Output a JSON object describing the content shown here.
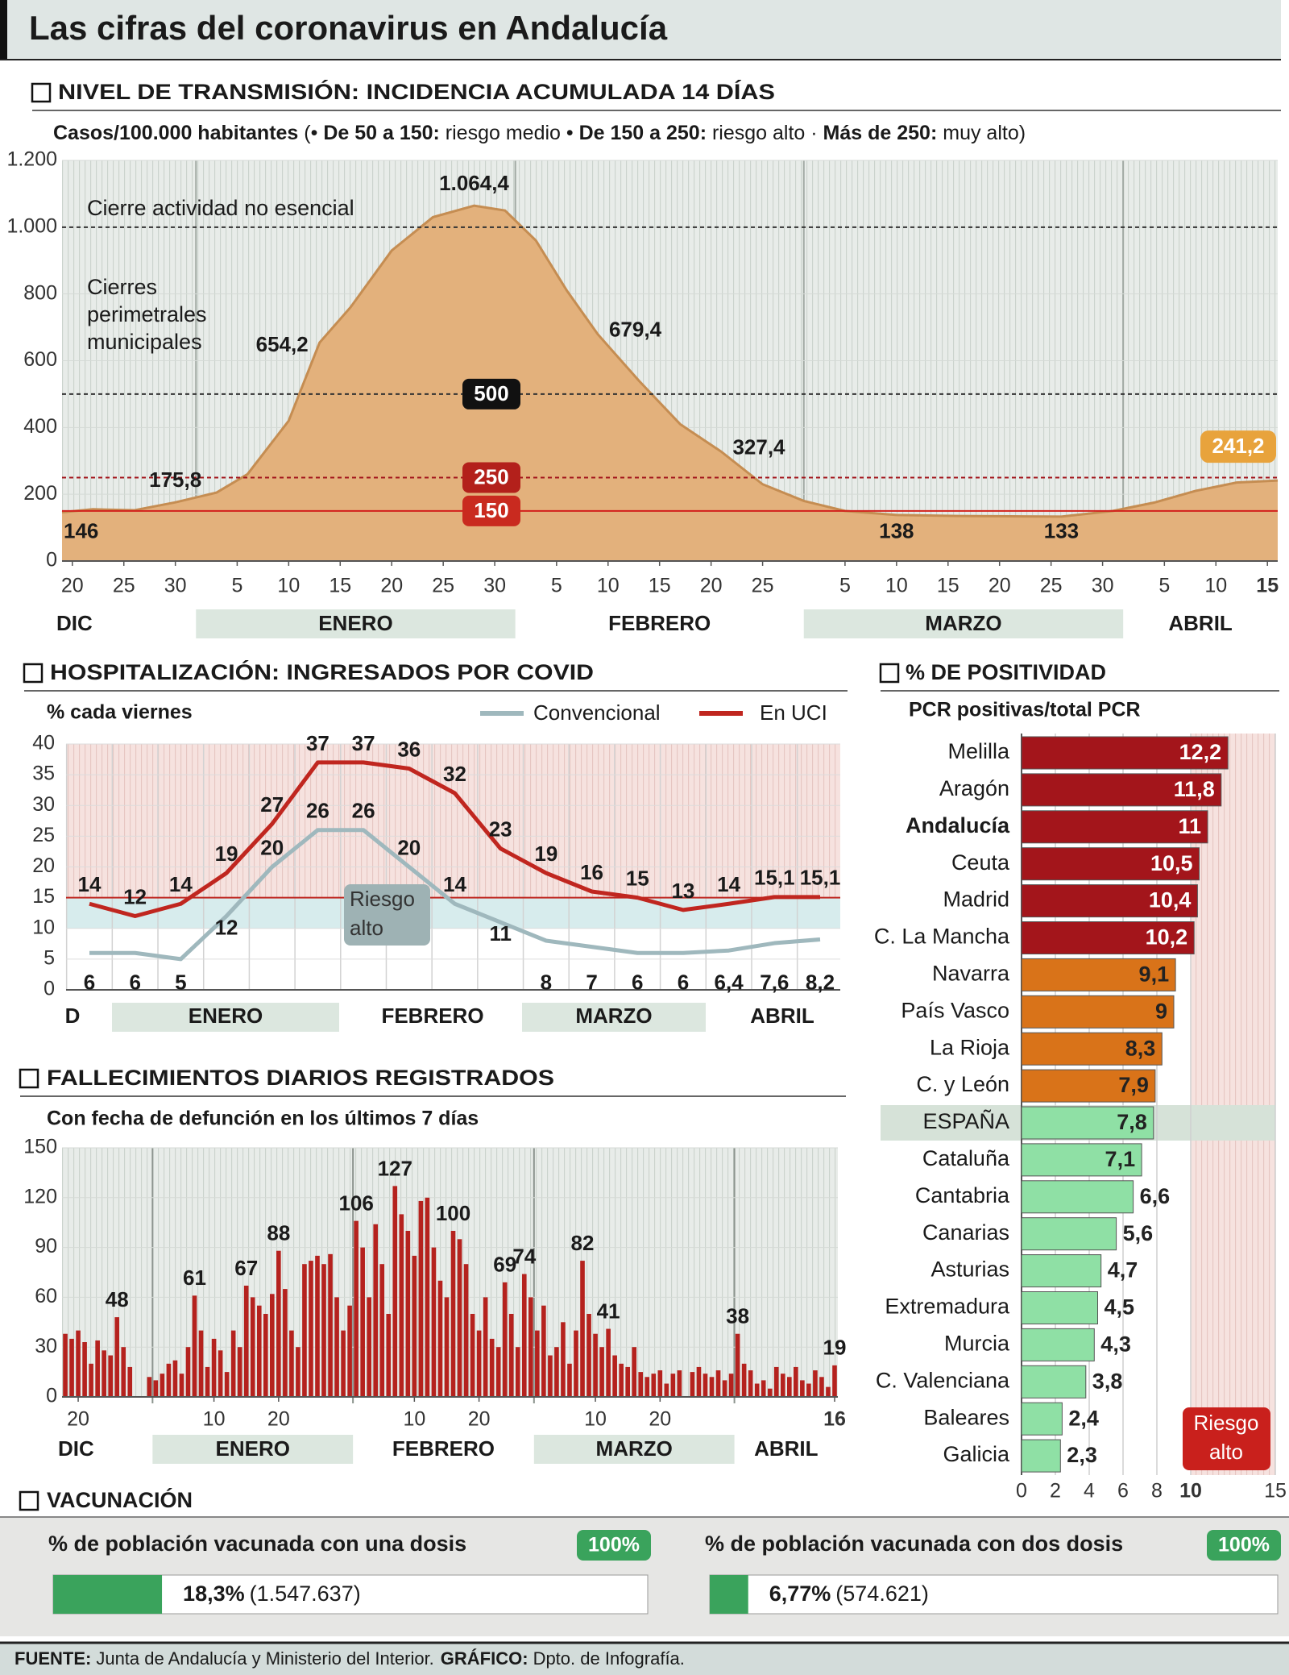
{
  "header": {
    "title": "Las cifras del coronavirus en Andalucía"
  },
  "chart_data": [
    {
      "type": "area",
      "title": "NIVEL DE TRANSMISIÓN: INCIDENCIA ACUMULADA 14 DÍAS",
      "subtitle": [
        {
          "text": "Casos/100.000 habitantes",
          "bold": true
        },
        {
          "text": " (• ",
          "bold": false
        },
        {
          "text": "De 50 a 150:",
          "bold": true
        },
        {
          "text": " riesgo medio • ",
          "bold": false
        },
        {
          "text": "De 150 a 250:",
          "bold": true
        },
        {
          "text": " riesgo alto · ",
          "bold": false
        },
        {
          "text": "Más de 250:",
          "bold": true
        },
        {
          "text": " muy alto)",
          "bold": false
        }
      ],
      "x": [
        "12-19",
        "12-22",
        "12-26",
        "12-30",
        "01-03",
        "01-06",
        "01-10",
        "01-13",
        "01-16",
        "01-20",
        "01-24",
        "01-28",
        "01-31",
        "02-03",
        "02-06",
        "02-09",
        "02-13",
        "02-17",
        "02-21",
        "02-25",
        "03-01",
        "03-05",
        "03-10",
        "03-16",
        "03-21",
        "03-26",
        "03-31",
        "04-04",
        "04-08",
        "04-12",
        "04-16"
      ],
      "values": [
        146,
        155,
        152,
        175.8,
        205,
        260,
        420,
        654.2,
        760,
        930,
        1030,
        1064.4,
        1050,
        960,
        810,
        679.4,
        540,
        410,
        327.4,
        230,
        180,
        150,
        138,
        135,
        134,
        133,
        150,
        175,
        210,
        235,
        241.2
      ],
      "value_labels": [
        "146",
        null,
        null,
        "175,8",
        null,
        null,
        null,
        "654,2",
        null,
        null,
        null,
        "1.064,4",
        null,
        null,
        null,
        "679,4",
        null,
        null,
        "327,4",
        null,
        null,
        null,
        "138",
        null,
        null,
        "133",
        null,
        null,
        null,
        null,
        "241,2"
      ],
      "color": "#e3b17c",
      "line_color": "#c58d52",
      "xlim": [
        "12-19",
        "04-16"
      ],
      "xticks": [
        {
          "value": "12-20",
          "label": "20"
        },
        {
          "value": "12-25",
          "label": "25"
        },
        {
          "value": "12-30",
          "label": "30"
        },
        {
          "value": "01-05",
          "label": "5"
        },
        {
          "value": "01-10",
          "label": "10"
        },
        {
          "value": "01-15",
          "label": "15"
        },
        {
          "value": "01-20",
          "label": "20"
        },
        {
          "value": "01-25",
          "label": "25"
        },
        {
          "value": "01-30",
          "label": "30"
        },
        {
          "value": "02-05",
          "label": "5"
        },
        {
          "value": "02-10",
          "label": "10"
        },
        {
          "value": "02-15",
          "label": "15"
        },
        {
          "value": "02-20",
          "label": "20"
        },
        {
          "value": "02-25",
          "label": "25"
        },
        {
          "value": "03-05",
          "label": "5"
        },
        {
          "value": "03-10",
          "label": "10"
        },
        {
          "value": "03-15",
          "label": "15"
        },
        {
          "value": "03-20",
          "label": "20"
        },
        {
          "value": "03-25",
          "label": "25"
        },
        {
          "value": "03-30",
          "label": "30"
        },
        {
          "value": "04-05",
          "label": "5"
        },
        {
          "value": "04-10",
          "label": "10"
        },
        {
          "value": "04-15",
          "label": "15"
        }
      ],
      "months": [
        {
          "label": "DIC",
          "from": "12-19",
          "to": "12-31",
          "band": false
        },
        {
          "label": "ENERO",
          "from": "01-01",
          "to": "01-31",
          "band": true
        },
        {
          "label": "FEBRERO",
          "from": "02-01",
          "to": "02-28",
          "band": false
        },
        {
          "label": "MARZO",
          "from": "03-01",
          "to": "03-31",
          "band": true
        },
        {
          "label": "ABRIL",
          "from": "04-01",
          "to": "04-16",
          "band": false
        }
      ],
      "ylim": [
        0,
        1200
      ],
      "yticks": [
        0,
        200,
        400,
        600,
        800,
        {
          "value": 1000,
          "label": "1.000"
        },
        {
          "value": 1200,
          "label": "1.200"
        }
      ],
      "reference_lines": [
        {
          "value": 1000,
          "color": "#333333",
          "label": "Cierre actividad no esencial"
        },
        {
          "value": 500,
          "color": "#333333",
          "tag_color": "#111111"
        },
        {
          "value": 250,
          "color": "#a3151b",
          "tag_color": "#b3201b"
        },
        {
          "value": 150,
          "color": "#d3201b",
          "tag_color": "#c92a1f"
        }
      ],
      "annotation": [
        "Cierres",
        "perimetrales",
        "municipales"
      ]
    },
    {
      "type": "line",
      "title": "HOSPITALIZACIÓN: INGRESADOS POR COVID",
      "subtitle": "% cada viernes",
      "categories": [
        null,
        null,
        null,
        null,
        null,
        null,
        null,
        null,
        null,
        null,
        null,
        null,
        null,
        null,
        null,
        null,
        null
      ],
      "series": [
        {
          "name": "Convencional",
          "color": "#9fb8bd",
          "values": [
            6,
            6,
            5,
            12,
            20,
            26,
            26,
            20,
            14,
            11,
            8,
            7,
            6,
            6,
            6.4,
            7.6,
            8.2
          ],
          "value_labels": [
            "6",
            "6",
            "5",
            "12",
            "20",
            "26",
            "26",
            "20",
            "14",
            "11",
            "8",
            "7",
            "6",
            "6",
            "6,4",
            "7,6",
            "8,2"
          ]
        },
        {
          "name": "En UCI",
          "color": "#c0261f",
          "values": [
            14,
            12,
            14,
            19,
            27,
            37,
            37,
            36,
            32,
            23,
            19,
            16,
            15,
            13,
            14,
            15.1,
            15.1
          ],
          "value_labels": [
            "14",
            "12",
            "14",
            "19",
            "27",
            "37",
            "37",
            "36",
            "32",
            "23",
            "19",
            "16",
            "15",
            "13",
            "14",
            "15,1",
            "15,1"
          ]
        }
      ],
      "months": [
        {
          "label": "D",
          "band": false
        },
        {
          "label": "ENERO",
          "band": true
        },
        {
          "label": "FEBRERO",
          "band": false
        },
        {
          "label": "MARZO",
          "band": true
        },
        {
          "label": "ABRIL",
          "band": false
        }
      ],
      "ylim": [
        0,
        40
      ],
      "yticks": [
        0,
        5,
        10,
        15,
        20,
        25,
        30,
        35,
        40
      ],
      "risk_band": [
        10,
        15
      ],
      "threshold": 15,
      "annotation": [
        "Riesgo",
        "alto"
      ]
    },
    {
      "type": "bar",
      "title": "FALLECIMIENTOS DIARIOS REGISTRADOS",
      "subtitle": "Con fecha de defunción en los últimos 7 días",
      "x": [
        "12-18",
        "12-19",
        "12-20",
        "12-21",
        "12-22",
        "12-23",
        "12-24",
        "12-25",
        "12-26",
        "12-27",
        "12-28",
        "12-29",
        "12-30",
        "12-31",
        "01-01",
        "01-02",
        "01-03",
        "01-04",
        "01-05",
        "01-06",
        "01-07",
        "01-08",
        "01-09",
        "01-10",
        "01-11",
        "01-12",
        "01-13",
        "01-14",
        "01-15",
        "01-16",
        "01-17",
        "01-18",
        "01-19",
        "01-20",
        "01-21",
        "01-22",
        "01-23",
        "01-24",
        "01-25",
        "01-26",
        "01-27",
        "01-28",
        "01-29",
        "01-30",
        "01-31",
        "02-01",
        "02-02",
        "02-03",
        "02-04",
        "02-05",
        "02-06",
        "02-07",
        "02-08",
        "02-09",
        "02-10",
        "02-11",
        "02-12",
        "02-13",
        "02-14",
        "02-15",
        "02-16",
        "02-17",
        "02-18",
        "02-19",
        "02-20",
        "02-21",
        "02-22",
        "02-23",
        "02-24",
        "02-25",
        "02-26",
        "02-27",
        "02-28",
        "03-01",
        "03-02",
        "03-03",
        "03-04",
        "03-05",
        "03-06",
        "03-07",
        "03-08",
        "03-09",
        "03-10",
        "03-11",
        "03-12",
        "03-13",
        "03-14",
        "03-15",
        "03-16",
        "03-17",
        "03-18",
        "03-19",
        "03-20",
        "03-21",
        "03-22",
        "03-23",
        "03-24",
        "03-25",
        "03-26",
        "03-27",
        "03-28",
        "03-29",
        "03-30",
        "03-31",
        "04-01",
        "04-02",
        "04-03",
        "04-04",
        "04-05",
        "04-06",
        "04-07",
        "04-08",
        "04-09",
        "04-10",
        "04-11",
        "04-12",
        "04-13",
        "04-14",
        "04-15",
        "04-16"
      ],
      "values": [
        38,
        35,
        40,
        33,
        20,
        34,
        28,
        25,
        48,
        30,
        18,
        0,
        0,
        12,
        10,
        14,
        20,
        22,
        14,
        30,
        61,
        40,
        18,
        35,
        28,
        15,
        40,
        30,
        67,
        60,
        55,
        50,
        62,
        88,
        65,
        40,
        30,
        80,
        82,
        85,
        80,
        86,
        60,
        40,
        55,
        106,
        90,
        60,
        104,
        80,
        50,
        127,
        110,
        100,
        85,
        118,
        120,
        90,
        70,
        60,
        100,
        95,
        80,
        50,
        40,
        60,
        35,
        30,
        69,
        50,
        30,
        74,
        60,
        40,
        55,
        25,
        30,
        45,
        20,
        40,
        82,
        50,
        38,
        30,
        41,
        25,
        20,
        18,
        30,
        15,
        12,
        14,
        16,
        8,
        14,
        16,
        0,
        15,
        18,
        14,
        12,
        16,
        10,
        14,
        38,
        20,
        16,
        8,
        10,
        5,
        18,
        14,
        12,
        18,
        10,
        8,
        16,
        12,
        6,
        19
      ],
      "value_labels": [
        null,
        null,
        null,
        null,
        null,
        null,
        null,
        null,
        "48",
        null,
        null,
        null,
        null,
        null,
        null,
        null,
        null,
        null,
        null,
        null,
        "61",
        null,
        null,
        null,
        null,
        null,
        null,
        null,
        "67",
        null,
        null,
        null,
        null,
        "88",
        null,
        null,
        null,
        null,
        null,
        null,
        null,
        null,
        null,
        null,
        null,
        "106",
        null,
        null,
        null,
        null,
        null,
        "127",
        null,
        null,
        null,
        null,
        null,
        null,
        null,
        null,
        "100",
        null,
        null,
        null,
        null,
        null,
        null,
        null,
        "69",
        null,
        null,
        "74",
        null,
        null,
        null,
        null,
        null,
        null,
        null,
        null,
        "82",
        null,
        null,
        null,
        "41",
        null,
        null,
        null,
        null,
        null,
        null,
        null,
        null,
        null,
        null,
        null,
        null,
        null,
        null,
        null,
        null,
        null,
        null,
        null,
        "38",
        null,
        null,
        null,
        null,
        null,
        null,
        null,
        null,
        null,
        null,
        null,
        null,
        null,
        null,
        "19"
      ],
      "color": "#b5221e",
      "xlim": [
        "12-18",
        "04-16"
      ],
      "xticks": [
        {
          "value": "12-20",
          "label": "20"
        },
        {
          "value": "01-10",
          "label": "10"
        },
        {
          "value": "01-20",
          "label": "20"
        },
        {
          "value": "02-10",
          "label": "10"
        },
        {
          "value": "02-20",
          "label": "20"
        },
        {
          "value": "03-10",
          "label": "10"
        },
        {
          "value": "03-20",
          "label": "20"
        },
        {
          "value": "04-16",
          "label": "16"
        }
      ],
      "months": [
        {
          "label": "DIC",
          "from": "12-18",
          "to": "12-31",
          "band": false
        },
        {
          "label": "ENERO",
          "from": "01-01",
          "to": "01-31",
          "band": true
        },
        {
          "label": "FEBRERO",
          "from": "02-01",
          "to": "02-28",
          "band": false
        },
        {
          "label": "MARZO",
          "from": "03-01",
          "to": "03-31",
          "band": true
        },
        {
          "label": "ABRIL",
          "from": "04-01",
          "to": "04-16",
          "band": false
        }
      ],
      "ylim": [
        0,
        150
      ],
      "yticks": [
        0,
        30,
        60,
        90,
        120,
        150
      ]
    },
    {
      "type": "hbar",
      "title": "% DE POSITIVIDAD",
      "subtitle": "PCR positivas/total PCR",
      "categories": [
        "Melilla",
        "Aragón",
        "Andalucía",
        "Ceuta",
        "Madrid",
        "C. La Mancha",
        "Navarra",
        "País Vasco",
        "La Rioja",
        "C. y León",
        "ESPAÑA",
        "Cataluña",
        "Cantabria",
        "Canarias",
        "Asturias",
        "Extremadura",
        "Murcia",
        "C. Valenciana",
        "Baleares",
        "Galicia"
      ],
      "values": [
        12.2,
        11.8,
        11,
        10.5,
        10.4,
        10.2,
        9.1,
        9,
        8.3,
        7.9,
        7.8,
        7.1,
        6.6,
        5.6,
        4.7,
        4.5,
        4.3,
        3.8,
        2.4,
        2.3
      ],
      "value_labels": [
        "12,2",
        "11,8",
        "11",
        "10,5",
        "10,4",
        "10,2",
        "9,1",
        "9",
        "8,3",
        "7,9",
        "7,8",
        "7,1",
        "6,6",
        "5,6",
        "4,7",
        "4,5",
        "4,3",
        "3,8",
        "2,4",
        "2,3"
      ],
      "colors": [
        "#a3151b",
        "#a3151b",
        "#a3151b",
        "#a3151b",
        "#a3151b",
        "#a3151b",
        "#d97319",
        "#d97319",
        "#d97319",
        "#d97319",
        "#8fe0a5",
        "#8fe0a5",
        "#8fe0a5",
        "#8fe0a5",
        "#8fe0a5",
        "#8fe0a5",
        "#8fe0a5",
        "#8fe0a5",
        "#8fe0a5",
        "#8fe0a5"
      ],
      "xlim": [
        0,
        15
      ],
      "xticks": [
        0,
        2,
        4,
        6,
        8,
        10,
        15
      ],
      "threshold": 10,
      "annotation": [
        "Riesgo",
        "alto"
      ]
    }
  ],
  "vaccination": {
    "title": "VACUNACIÓN",
    "items": [
      {
        "label": "% de población vacunada con una dosis",
        "value": 18.3,
        "value_label": "18,3%",
        "count_label": "(1.547.637)",
        "max": {
          "value": 100,
          "label": "100%"
        }
      },
      {
        "label": "% de población vacunada con dos dosis",
        "value": 6.77,
        "value_label": "6,77%",
        "count_label": "(574.621)",
        "max": {
          "value": 100,
          "label": "100%"
        }
      }
    ],
    "color": "#3aa35c"
  },
  "footer": {
    "source_label": "FUENTE:",
    "source": "Junta de Andalucía y Ministerio del Interior.",
    "graphic_label": "GRÁFICO:",
    "graphic": "Dpto. de Infografía."
  }
}
